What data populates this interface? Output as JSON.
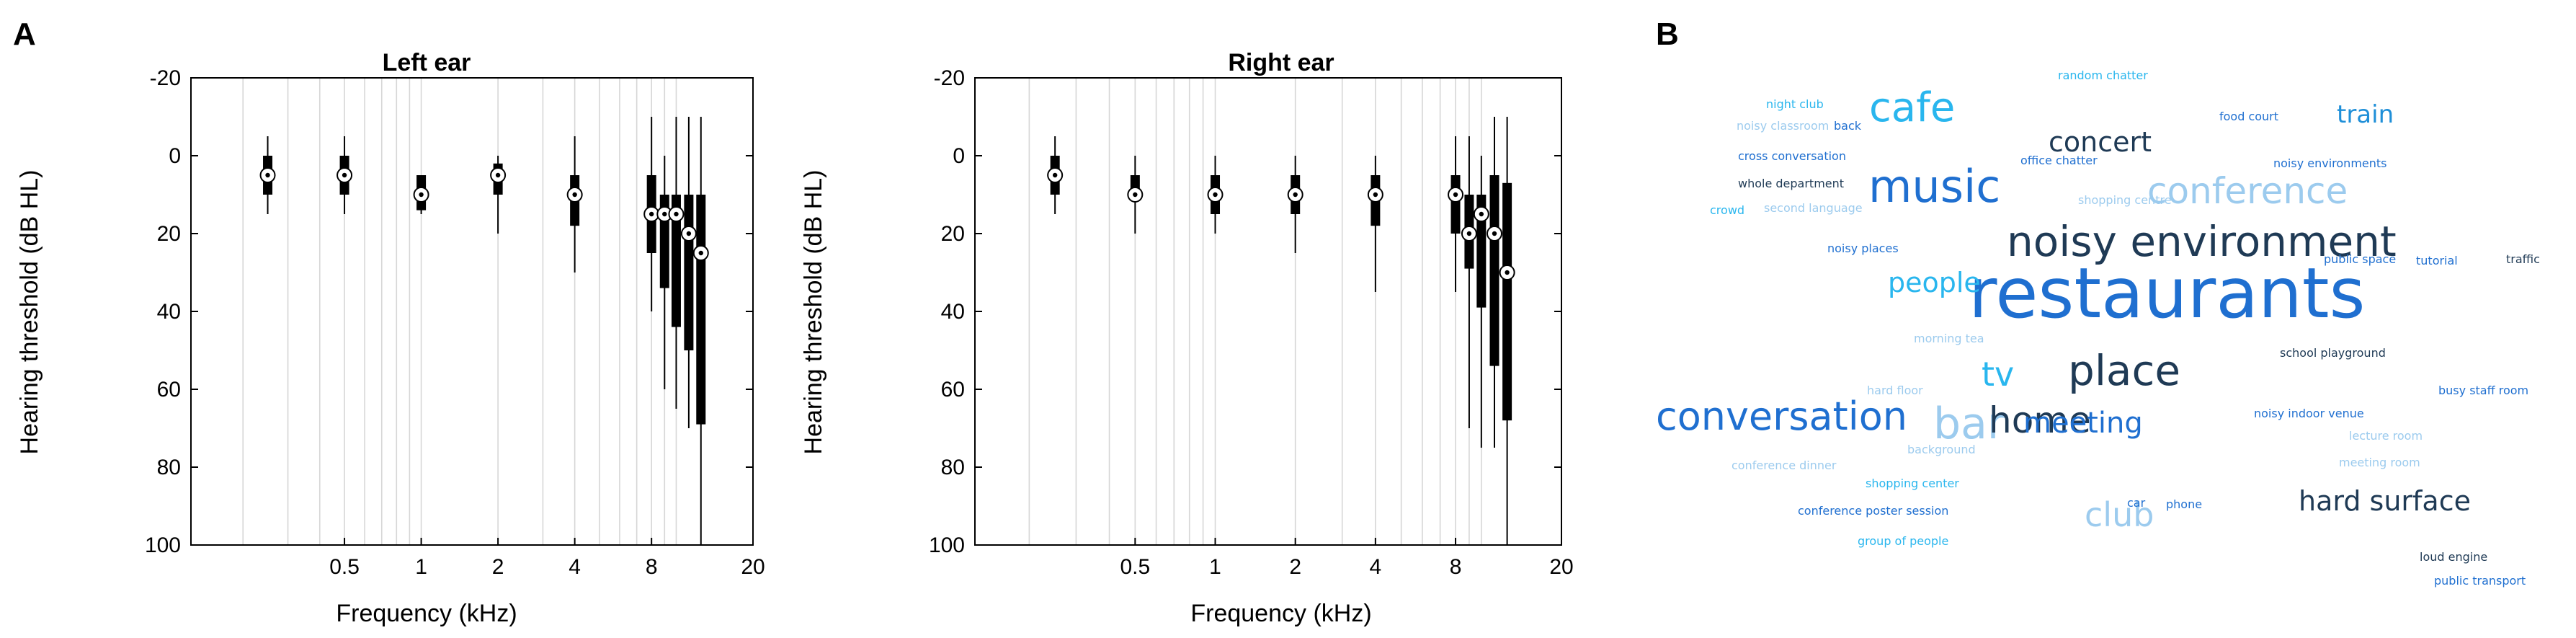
{
  "panels": {
    "a_label": "A",
    "b_label": "B"
  },
  "chart_data": [
    {
      "type": "box",
      "title": "Left ear",
      "xlabel": "Frequency (kHz)",
      "ylabel": "Hearing threshold (dB HL)",
      "x_scale": "log",
      "xlim": [
        0.125,
        20
      ],
      "ylim": [
        -20,
        100
      ],
      "y_reversed": true,
      "x_tick_values": [
        0.5,
        1,
        2,
        4,
        8,
        20
      ],
      "x_tick_labels": [
        "0.5",
        "1",
        "2",
        "4",
        "8",
        "20"
      ],
      "y_tick_values": [
        -20,
        0,
        20,
        40,
        60,
        80,
        100
      ],
      "y_tick_labels": [
        "-20",
        "0",
        "20",
        "40",
        "60",
        "80",
        "100"
      ],
      "grid": "vertical",
      "boxes": [
        {
          "freq": 0.25,
          "whisker_low": -5,
          "q1": 0,
          "median": 5,
          "q3": 10,
          "whisker_high": 15
        },
        {
          "freq": 0.5,
          "whisker_low": -5,
          "q1": 0,
          "median": 5,
          "q3": 10,
          "whisker_high": 15
        },
        {
          "freq": 1,
          "whisker_low": 5,
          "q1": 5,
          "median": 10,
          "q3": 14,
          "whisker_high": 15
        },
        {
          "freq": 2,
          "whisker_low": 0,
          "q1": 2,
          "median": 5,
          "q3": 10,
          "whisker_high": 20
        },
        {
          "freq": 4,
          "whisker_low": -5,
          "q1": 5,
          "median": 10,
          "q3": 18,
          "whisker_high": 30
        },
        {
          "freq": 8,
          "whisker_low": -10,
          "q1": 5,
          "median": 15,
          "q3": 25,
          "whisker_high": 40
        },
        {
          "freq": 9,
          "whisker_low": 0,
          "q1": 10,
          "median": 15,
          "q3": 34,
          "whisker_high": 60
        },
        {
          "freq": 10,
          "whisker_low": -10,
          "q1": 10,
          "median": 15,
          "q3": 44,
          "whisker_high": 65
        },
        {
          "freq": 11.2,
          "whisker_low": -10,
          "q1": 10,
          "median": 20,
          "q3": 50,
          "whisker_high": 70
        },
        {
          "freq": 12.5,
          "whisker_low": -10,
          "q1": 10,
          "median": 25,
          "q3": 69,
          "whisker_high": 100
        }
      ]
    },
    {
      "type": "box",
      "title": "Right ear",
      "xlabel": "Frequency (kHz)",
      "ylabel": "Hearing threshold (dB HL)",
      "x_scale": "log",
      "xlim": [
        0.125,
        20
      ],
      "ylim": [
        -20,
        100
      ],
      "y_reversed": true,
      "x_tick_values": [
        0.5,
        1,
        2,
        4,
        8,
        20
      ],
      "x_tick_labels": [
        "0.5",
        "1",
        "2",
        "4",
        "8",
        "20"
      ],
      "y_tick_values": [
        -20,
        0,
        20,
        40,
        60,
        80,
        100
      ],
      "y_tick_labels": [
        "-20",
        "0",
        "20",
        "40",
        "60",
        "80",
        "100"
      ],
      "grid": "vertical",
      "boxes": [
        {
          "freq": 0.25,
          "whisker_low": -5,
          "q1": 0,
          "median": 5,
          "q3": 10,
          "whisker_high": 15
        },
        {
          "freq": 0.5,
          "whisker_low": 0,
          "q1": 5,
          "median": 10,
          "q3": 10,
          "whisker_high": 20
        },
        {
          "freq": 1,
          "whisker_low": 0,
          "q1": 5,
          "median": 10,
          "q3": 15,
          "whisker_high": 20
        },
        {
          "freq": 2,
          "whisker_low": 0,
          "q1": 5,
          "median": 10,
          "q3": 15,
          "whisker_high": 25
        },
        {
          "freq": 4,
          "whisker_low": 0,
          "q1": 5,
          "median": 10,
          "q3": 18,
          "whisker_high": 35
        },
        {
          "freq": 8,
          "whisker_low": -5,
          "q1": 5,
          "median": 10,
          "q3": 20,
          "whisker_high": 35
        },
        {
          "freq": 9,
          "whisker_low": -5,
          "q1": 10,
          "median": 20,
          "q3": 29,
          "whisker_high": 70
        },
        {
          "freq": 10,
          "whisker_low": 0,
          "q1": 10,
          "median": 15,
          "q3": 39,
          "whisker_high": 75
        },
        {
          "freq": 11.2,
          "whisker_low": -10,
          "q1": 5,
          "median": 20,
          "q3": 54,
          "whisker_high": 75
        },
        {
          "freq": 12.5,
          "whisker_low": -10,
          "q1": 7,
          "median": 30,
          "q3": 68,
          "whisker_high": 100
        }
      ]
    }
  ],
  "wordcloud": {
    "words": [
      {
        "text": "restaurants",
        "color": "#1f6fd0"
      },
      {
        "text": "noisy environment",
        "color": "#1f3a55"
      },
      {
        "text": "music",
        "color": "#1f6fd0"
      },
      {
        "text": "conference",
        "color": "#9ccbee"
      },
      {
        "text": "conversation",
        "color": "#1f6fd0"
      },
      {
        "text": "place",
        "color": "#1f3a55"
      },
      {
        "text": "bar",
        "color": "#9ccbee"
      },
      {
        "text": "home",
        "color": "#1f3a55"
      },
      {
        "text": "cafe",
        "color": "#29b6ee"
      },
      {
        "text": "meeting",
        "color": "#1f6fd0"
      },
      {
        "text": "club",
        "color": "#9ccbee"
      },
      {
        "text": "hard surface",
        "color": "#1f3a55"
      },
      {
        "text": "concert",
        "color": "#1f3a55"
      },
      {
        "text": "train",
        "color": "#1f8fd8"
      },
      {
        "text": "tv",
        "color": "#29b6ee"
      },
      {
        "text": "people",
        "color": "#29b6ee"
      },
      {
        "text": "random chatter",
        "color": "#29b6ee"
      },
      {
        "text": "night club",
        "color": "#29b6ee"
      },
      {
        "text": "noisy classroom",
        "color": "#9ccbee"
      },
      {
        "text": "back",
        "color": "#1f6fd0"
      },
      {
        "text": "food court",
        "color": "#1f6fd0"
      },
      {
        "text": "cross conversation",
        "color": "#1f6fd0"
      },
      {
        "text": "office chatter",
        "color": "#1f6fd0"
      },
      {
        "text": "noisy environments",
        "color": "#1f6fd0"
      },
      {
        "text": "whole department",
        "color": "#1f3a55"
      },
      {
        "text": "crowd",
        "color": "#29b6ee"
      },
      {
        "text": "second language",
        "color": "#9ccbee"
      },
      {
        "text": "shopping centre",
        "color": "#9ccbee"
      },
      {
        "text": "noisy places",
        "color": "#1f6fd0"
      },
      {
        "text": "public space",
        "color": "#1f6fd0"
      },
      {
        "text": "tutorial",
        "color": "#1f6fd0"
      },
      {
        "text": "traffic",
        "color": "#1f3a55"
      },
      {
        "text": "morning tea",
        "color": "#9ccbee"
      },
      {
        "text": "school playground",
        "color": "#1f3a55"
      },
      {
        "text": "hard floor",
        "color": "#9ccbee"
      },
      {
        "text": "busy staff room",
        "color": "#1f6fd0"
      },
      {
        "text": "noisy indoor venue",
        "color": "#1f6fd0"
      },
      {
        "text": "background",
        "color": "#9ccbee"
      },
      {
        "text": "lecture room",
        "color": "#9ccbee"
      },
      {
        "text": "conference dinner",
        "color": "#9ccbee"
      },
      {
        "text": "meeting room",
        "color": "#9ccbee"
      },
      {
        "text": "shopping center",
        "color": "#29b6ee"
      },
      {
        "text": "car",
        "color": "#1f6fd0"
      },
      {
        "text": "phone",
        "color": "#1f6fd0"
      },
      {
        "text": "conference poster session",
        "color": "#1f6fd0"
      },
      {
        "text": "group of people",
        "color": "#29b6ee"
      },
      {
        "text": "loud engine",
        "color": "#1f3a55"
      },
      {
        "text": "public transport",
        "color": "#1f6fd0"
      }
    ]
  }
}
